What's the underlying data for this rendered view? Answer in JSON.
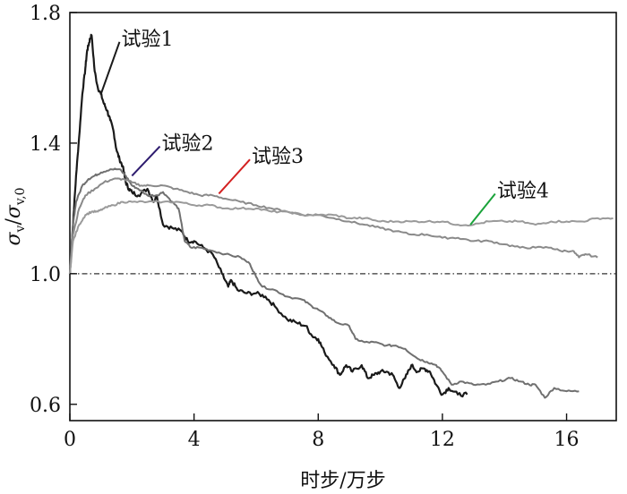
{
  "chart_data": {
    "type": "line",
    "title": "",
    "xlabel": "时步/万步",
    "ylabel_main": "σ",
    "ylabel_sub1": "v",
    "ylabel_slash": "/",
    "ylabel_sub2": "v,0",
    "xlim": [
      0,
      17.6
    ],
    "ylim": [
      0.55,
      1.8
    ],
    "xticks": [
      0,
      4,
      8,
      12,
      16
    ],
    "xtick_labels": [
      "0",
      "4",
      "8",
      "12",
      "16"
    ],
    "yticks": [
      0.6,
      1.0,
      1.4,
      1.8
    ],
    "ytick_labels": [
      "0.6",
      "1.0",
      "1.4",
      "1.8"
    ],
    "reference_line": {
      "y": 1.0,
      "style": "dash-dot",
      "color": "#333333"
    },
    "grid": false,
    "legend": "annotations",
    "series": [
      {
        "name": "试验1",
        "color": "#1a1a1a",
        "points": [
          [
            0,
            1.0
          ],
          [
            0.1,
            1.15
          ],
          [
            0.2,
            1.3
          ],
          [
            0.3,
            1.42
          ],
          [
            0.4,
            1.55
          ],
          [
            0.5,
            1.63
          ],
          [
            0.55,
            1.68
          ],
          [
            0.6,
            1.7
          ],
          [
            0.65,
            1.72
          ],
          [
            0.7,
            1.73
          ],
          [
            0.8,
            1.62
          ],
          [
            0.9,
            1.57
          ],
          [
            1.0,
            1.55
          ],
          [
            1.1,
            1.52
          ],
          [
            1.2,
            1.5
          ],
          [
            1.3,
            1.47
          ],
          [
            1.4,
            1.44
          ],
          [
            1.5,
            1.38
          ],
          [
            1.6,
            1.35
          ],
          [
            1.7,
            1.33
          ],
          [
            1.8,
            1.28
          ],
          [
            1.9,
            1.26
          ],
          [
            2.0,
            1.25
          ],
          [
            2.2,
            1.24
          ],
          [
            2.5,
            1.26
          ],
          [
            2.7,
            1.22
          ],
          [
            2.8,
            1.24
          ],
          [
            3.0,
            1.15
          ],
          [
            3.3,
            1.14
          ],
          [
            3.6,
            1.13
          ],
          [
            3.8,
            1.1
          ],
          [
            4.0,
            1.1
          ],
          [
            4.3,
            1.08
          ],
          [
            4.6,
            1.06
          ],
          [
            4.9,
            1.0
          ],
          [
            5.1,
            0.96
          ],
          [
            5.2,
            0.98
          ],
          [
            5.4,
            0.95
          ],
          [
            5.7,
            0.94
          ],
          [
            6.0,
            0.94
          ],
          [
            6.3,
            0.93
          ],
          [
            6.6,
            0.9
          ],
          [
            7.0,
            0.86
          ],
          [
            7.3,
            0.85
          ],
          [
            7.6,
            0.84
          ],
          [
            7.8,
            0.81
          ],
          [
            8.0,
            0.8
          ],
          [
            8.2,
            0.76
          ],
          [
            8.5,
            0.72
          ],
          [
            8.7,
            0.69
          ],
          [
            8.9,
            0.72
          ],
          [
            9.1,
            0.7
          ],
          [
            9.4,
            0.72
          ],
          [
            9.6,
            0.68
          ],
          [
            9.8,
            0.69
          ],
          [
            10.0,
            0.7
          ],
          [
            10.2,
            0.7
          ],
          [
            10.4,
            0.69
          ],
          [
            10.6,
            0.65
          ],
          [
            10.8,
            0.68
          ],
          [
            11.0,
            0.72
          ],
          [
            11.2,
            0.7
          ],
          [
            11.4,
            0.71
          ],
          [
            11.6,
            0.7
          ],
          [
            11.8,
            0.66
          ],
          [
            12.0,
            0.63
          ],
          [
            12.2,
            0.65
          ],
          [
            12.5,
            0.63
          ],
          [
            12.8,
            0.63
          ]
        ]
      },
      {
        "name": "试验2",
        "color": "#707070",
        "points": [
          [
            0,
            1.0
          ],
          [
            0.1,
            1.15
          ],
          [
            0.2,
            1.22
          ],
          [
            0.4,
            1.27
          ],
          [
            0.6,
            1.29
          ],
          [
            0.8,
            1.3
          ],
          [
            1.0,
            1.31
          ],
          [
            1.3,
            1.32
          ],
          [
            1.6,
            1.32
          ],
          [
            1.8,
            1.3
          ],
          [
            2.0,
            1.27
          ],
          [
            2.2,
            1.26
          ],
          [
            2.5,
            1.24
          ],
          [
            2.8,
            1.24
          ],
          [
            3.0,
            1.25
          ],
          [
            3.3,
            1.22
          ],
          [
            3.5,
            1.2
          ],
          [
            3.7,
            1.1
          ],
          [
            3.9,
            1.08
          ],
          [
            4.2,
            1.08
          ],
          [
            4.6,
            1.07
          ],
          [
            5.0,
            1.06
          ],
          [
            5.5,
            1.05
          ],
          [
            5.8,
            1.03
          ],
          [
            6.0,
            0.99
          ],
          [
            6.2,
            0.96
          ],
          [
            6.6,
            0.95
          ],
          [
            7.0,
            0.93
          ],
          [
            7.5,
            0.92
          ],
          [
            7.8,
            0.9
          ],
          [
            8.0,
            0.89
          ],
          [
            8.3,
            0.87
          ],
          [
            8.6,
            0.85
          ],
          [
            9.0,
            0.84
          ],
          [
            9.2,
            0.8
          ],
          [
            9.5,
            0.79
          ],
          [
            9.8,
            0.79
          ],
          [
            10.2,
            0.78
          ],
          [
            10.5,
            0.78
          ],
          [
            10.8,
            0.77
          ],
          [
            11.2,
            0.74
          ],
          [
            11.5,
            0.73
          ],
          [
            11.8,
            0.72
          ],
          [
            12.0,
            0.7
          ],
          [
            12.3,
            0.66
          ],
          [
            12.6,
            0.67
          ],
          [
            13.0,
            0.66
          ],
          [
            13.4,
            0.66
          ],
          [
            13.8,
            0.67
          ],
          [
            14.2,
            0.68
          ],
          [
            14.5,
            0.67
          ],
          [
            14.8,
            0.66
          ],
          [
            15.0,
            0.66
          ],
          [
            15.3,
            0.62
          ],
          [
            15.6,
            0.65
          ],
          [
            16.0,
            0.64
          ],
          [
            16.4,
            0.64
          ]
        ]
      },
      {
        "name": "试验3",
        "color": "#8a8a8a",
        "points": [
          [
            0,
            1.0
          ],
          [
            0.1,
            1.12
          ],
          [
            0.3,
            1.2
          ],
          [
            0.5,
            1.24
          ],
          [
            0.8,
            1.26
          ],
          [
            1.1,
            1.28
          ],
          [
            1.4,
            1.29
          ],
          [
            1.7,
            1.29
          ],
          [
            2.0,
            1.28
          ],
          [
            2.3,
            1.27
          ],
          [
            2.6,
            1.27
          ],
          [
            3.0,
            1.27
          ],
          [
            3.4,
            1.26
          ],
          [
            3.8,
            1.25
          ],
          [
            4.2,
            1.24
          ],
          [
            4.6,
            1.24
          ],
          [
            5.0,
            1.23
          ],
          [
            5.5,
            1.22
          ],
          [
            6.0,
            1.21
          ],
          [
            6.5,
            1.2
          ],
          [
            7.0,
            1.19
          ],
          [
            7.5,
            1.18
          ],
          [
            8.0,
            1.18
          ],
          [
            8.5,
            1.17
          ],
          [
            9.0,
            1.16
          ],
          [
            9.5,
            1.15
          ],
          [
            10.0,
            1.14
          ],
          [
            10.5,
            1.13
          ],
          [
            11.0,
            1.12
          ],
          [
            11.5,
            1.12
          ],
          [
            12.0,
            1.11
          ],
          [
            12.5,
            1.11
          ],
          [
            13.0,
            1.1
          ],
          [
            13.5,
            1.1
          ],
          [
            14.0,
            1.09
          ],
          [
            14.5,
            1.08
          ],
          [
            15.0,
            1.08
          ],
          [
            15.5,
            1.08
          ],
          [
            15.8,
            1.07
          ],
          [
            16.2,
            1.07
          ],
          [
            16.4,
            1.05
          ],
          [
            16.6,
            1.06
          ],
          [
            17.0,
            1.05
          ]
        ]
      },
      {
        "name": "试验4",
        "color": "#9a9a9a",
        "points": [
          [
            0,
            1.0
          ],
          [
            0.1,
            1.1
          ],
          [
            0.3,
            1.15
          ],
          [
            0.5,
            1.18
          ],
          [
            0.7,
            1.19
          ],
          [
            0.9,
            1.19
          ],
          [
            1.1,
            1.2
          ],
          [
            1.4,
            1.21
          ],
          [
            1.7,
            1.22
          ],
          [
            2.0,
            1.22
          ],
          [
            2.5,
            1.22
          ],
          [
            3.0,
            1.22
          ],
          [
            3.5,
            1.22
          ],
          [
            4.0,
            1.21
          ],
          [
            4.5,
            1.21
          ],
          [
            5.0,
            1.2
          ],
          [
            5.5,
            1.2
          ],
          [
            6.0,
            1.2
          ],
          [
            6.5,
            1.19
          ],
          [
            7.0,
            1.19
          ],
          [
            7.5,
            1.18
          ],
          [
            8.0,
            1.18
          ],
          [
            8.5,
            1.18
          ],
          [
            9.0,
            1.17
          ],
          [
            9.5,
            1.17
          ],
          [
            10.0,
            1.16
          ],
          [
            10.5,
            1.16
          ],
          [
            11.0,
            1.16
          ],
          [
            11.5,
            1.16
          ],
          [
            12.0,
            1.16
          ],
          [
            12.5,
            1.15
          ],
          [
            13.0,
            1.15
          ],
          [
            13.5,
            1.16
          ],
          [
            14.0,
            1.16
          ],
          [
            14.5,
            1.16
          ],
          [
            15.0,
            1.15
          ],
          [
            15.5,
            1.16
          ],
          [
            16.0,
            1.16
          ],
          [
            16.5,
            1.16
          ],
          [
            17.0,
            1.17
          ],
          [
            17.5,
            1.17
          ]
        ]
      }
    ],
    "annotations": [
      {
        "text": "试验1",
        "color": "#1a1a1a",
        "line_from": [
          1.0,
          1.55
        ],
        "line_to": [
          1.6,
          1.71
        ],
        "text_at": [
          1.6,
          1.71
        ]
      },
      {
        "text": "试验2",
        "color": "#2d1b6e",
        "line_from": [
          2.0,
          1.3
        ],
        "line_to": [
          2.9,
          1.39
        ],
        "text_at": [
          2.9,
          1.39
        ]
      },
      {
        "text": "试验3",
        "color": "#d32020",
        "line_from": [
          4.8,
          1.245
        ],
        "line_to": [
          5.8,
          1.35
        ],
        "text_at": [
          5.8,
          1.35
        ]
      },
      {
        "text": "试验4",
        "color": "#1aa33a",
        "line_from": [
          12.9,
          1.15
        ],
        "line_to": [
          13.7,
          1.245
        ],
        "text_at": [
          13.7,
          1.245
        ]
      }
    ]
  }
}
